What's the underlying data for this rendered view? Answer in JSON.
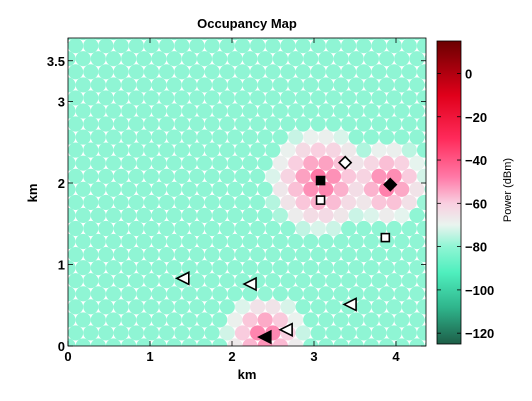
{
  "chart_data": {
    "type": "heatmap",
    "title": "Occupancy Map",
    "xlabel": "km",
    "ylabel": "km",
    "xlim": [
      0,
      4.35
    ],
    "ylim": [
      0,
      3.7
    ],
    "xticks": [
      0,
      1,
      2,
      3,
      4
    ],
    "xtick_labels": [
      "0",
      "1",
      "2",
      "3",
      "4"
    ],
    "yticks": [
      0,
      1,
      2,
      3,
      3.5
    ],
    "ytick_labels": [
      "0",
      "1",
      "2",
      "3",
      "3.5"
    ],
    "grid": false,
    "grid_layout": "hexagonal",
    "cell_spacing_km": 0.185,
    "background_power_dbm": -80,
    "colorbar": {
      "label": "Power (dBm)",
      "range": [
        -125,
        15
      ],
      "ticks": [
        0,
        -20,
        -40,
        -60,
        -80,
        -100,
        -120
      ],
      "tick_labels": [
        "0",
        "−20",
        "−40",
        "−60",
        "−80",
        "−100",
        "−120"
      ],
      "stops": [
        {
          "v": -125,
          "c": "#1d5e48"
        },
        {
          "v": -108,
          "c": "#2fb58c"
        },
        {
          "v": -92,
          "c": "#4fefbe"
        },
        {
          "v": -80,
          "c": "#8ff5d4"
        },
        {
          "v": -70,
          "c": "#e9f4ef"
        },
        {
          "v": -60,
          "c": "#f9cfe0"
        },
        {
          "v": -48,
          "c": "#ff7aa8"
        },
        {
          "v": -30,
          "c": "#ff2a5a"
        },
        {
          "v": -10,
          "c": "#e0001a"
        },
        {
          "v": 15,
          "c": "#6b0000"
        }
      ]
    },
    "hotspots": [
      {
        "x": 3.08,
        "y": 2.03,
        "peak": -45,
        "r": 0.42
      },
      {
        "x": 3.9,
        "y": 2.0,
        "peak": -45,
        "r": 0.32
      },
      {
        "x": 2.4,
        "y": 0.13,
        "peak": -45,
        "r": 0.32
      }
    ],
    "markers": [
      {
        "shape": "square",
        "filled": true,
        "x": 3.08,
        "y": 2.03
      },
      {
        "shape": "square",
        "filled": false,
        "x": 3.08,
        "y": 1.79
      },
      {
        "shape": "square",
        "filled": false,
        "x": 3.87,
        "y": 1.33
      },
      {
        "shape": "diamond",
        "filled": true,
        "x": 3.93,
        "y": 1.98
      },
      {
        "shape": "diamond",
        "filled": false,
        "x": 3.38,
        "y": 2.25
      },
      {
        "shape": "triangle-left",
        "filled": true,
        "x": 2.4,
        "y": 0.11
      },
      {
        "shape": "triangle-left",
        "filled": false,
        "x": 1.4,
        "y": 0.83
      },
      {
        "shape": "triangle-left",
        "filled": false,
        "x": 2.22,
        "y": 0.76
      },
      {
        "shape": "triangle-left",
        "filled": false,
        "x": 2.66,
        "y": 0.2
      },
      {
        "shape": "triangle-left",
        "filled": false,
        "x": 3.44,
        "y": 0.51
      }
    ]
  }
}
